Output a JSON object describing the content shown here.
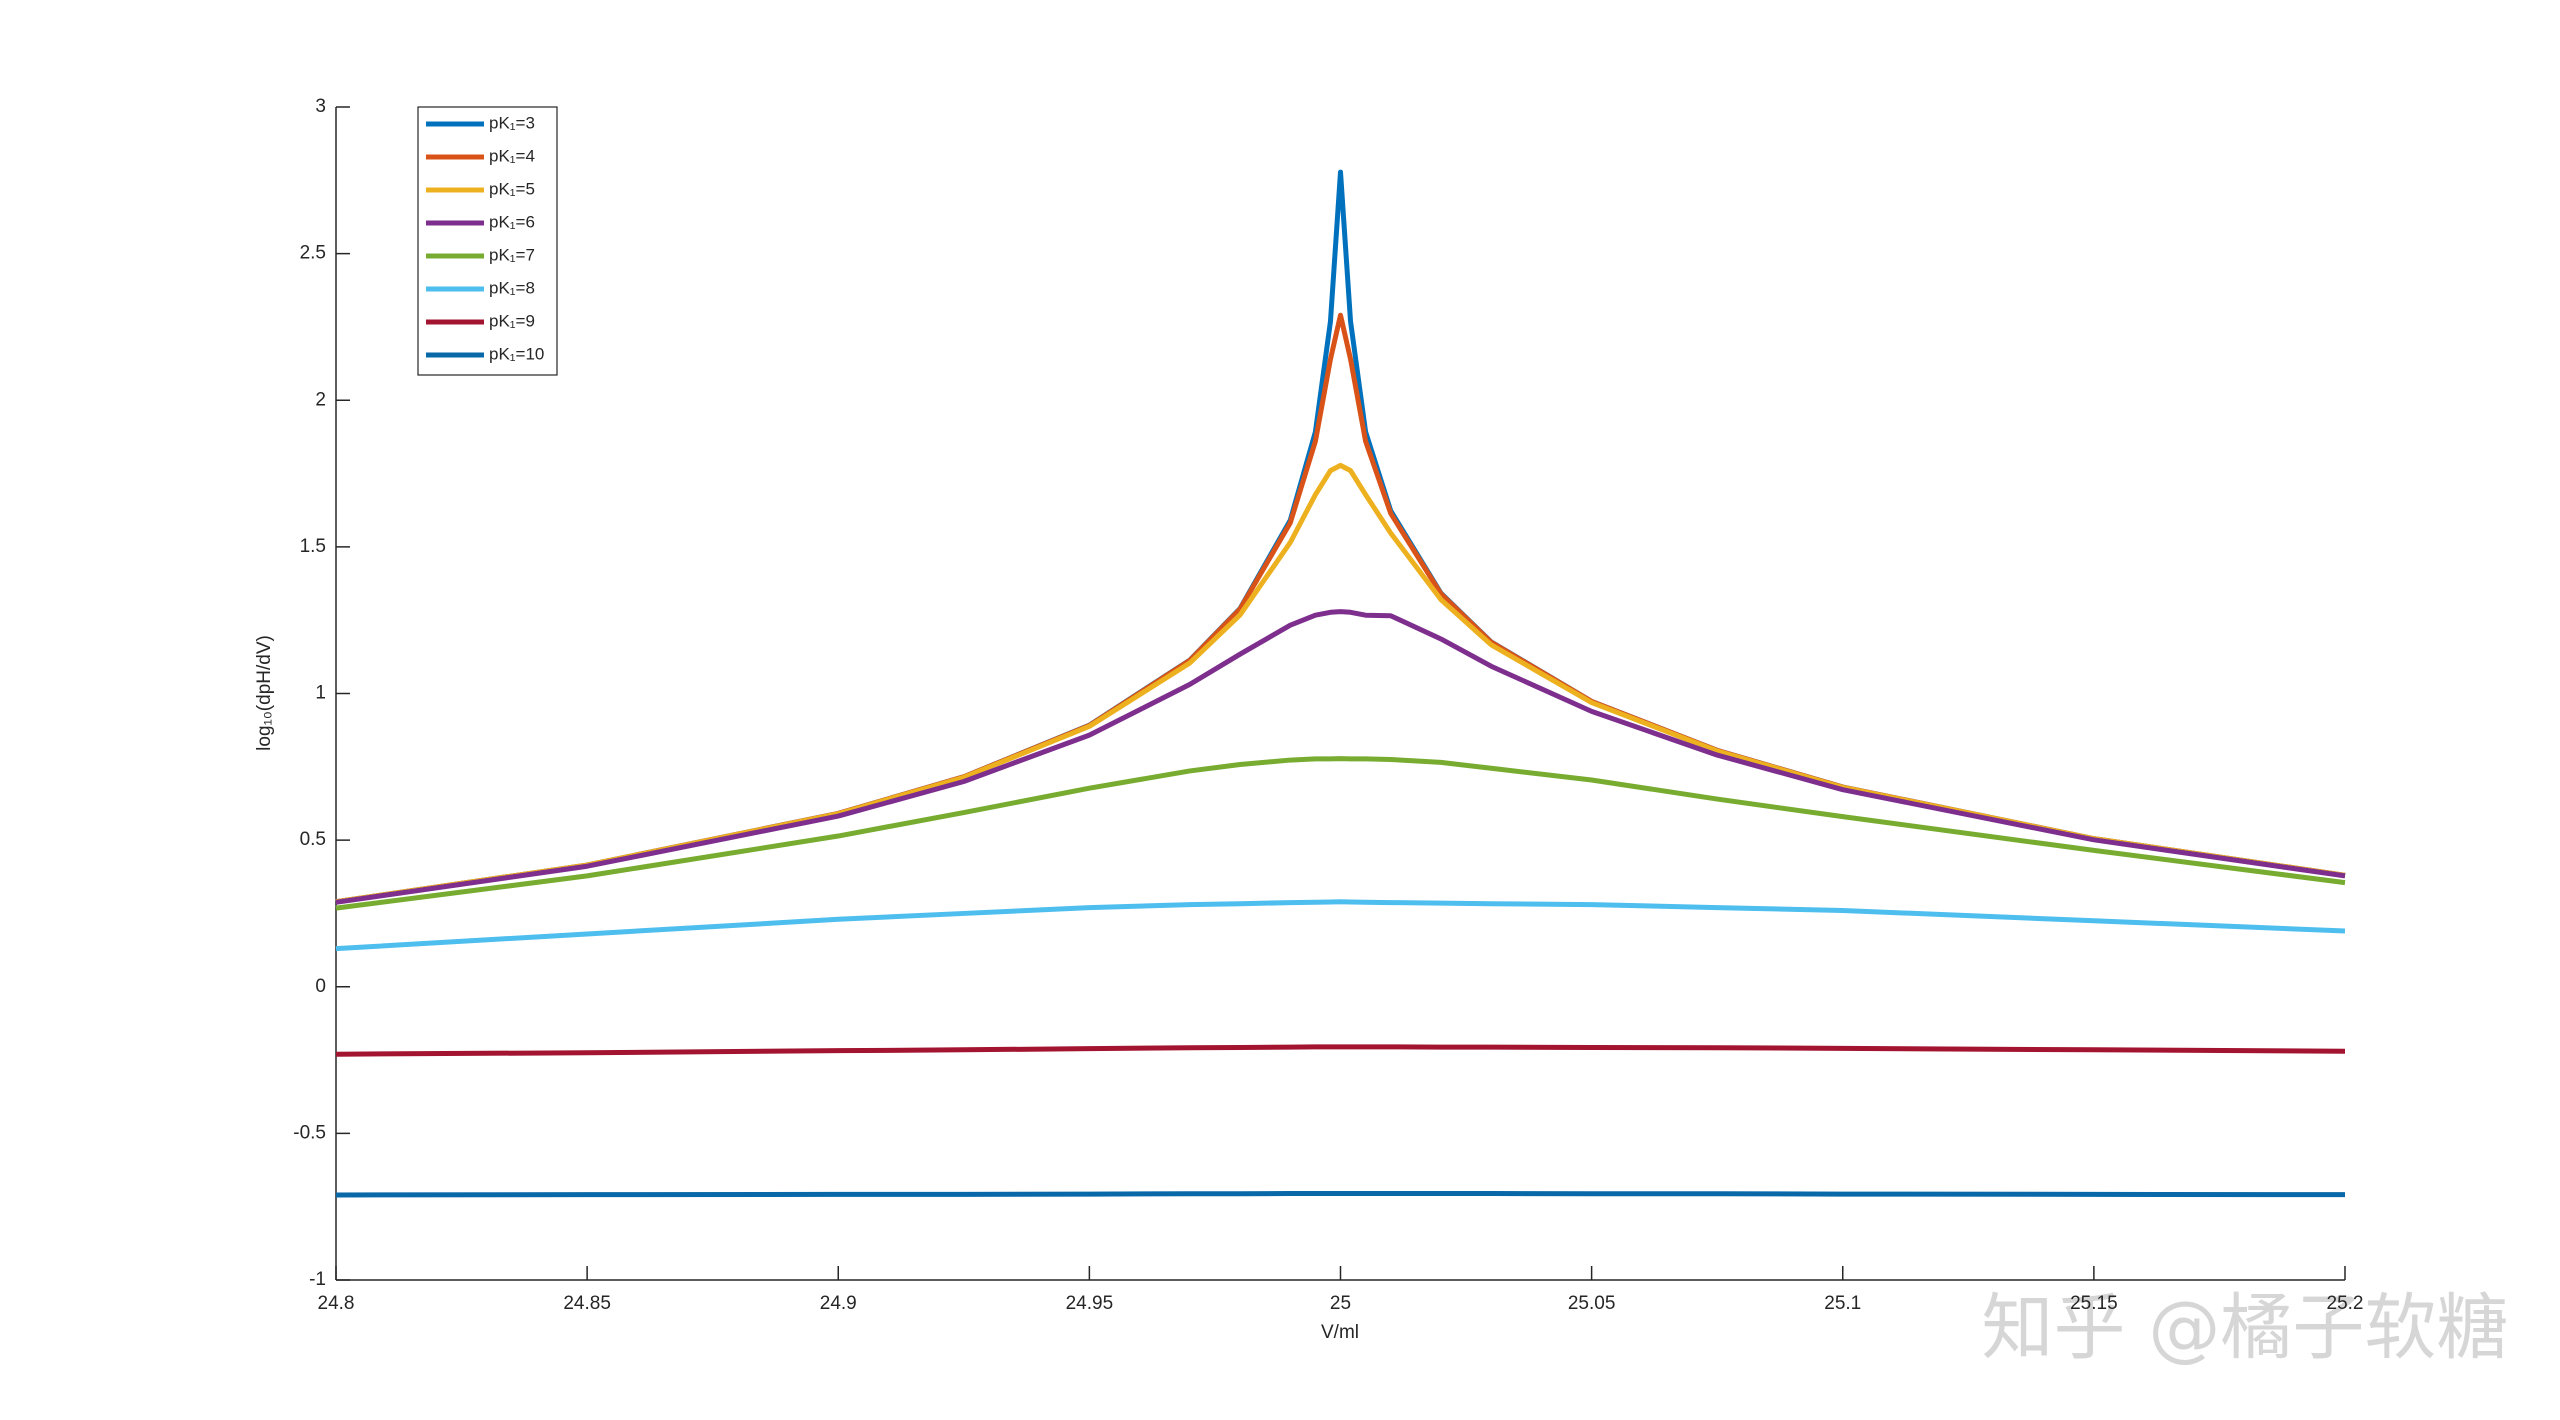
{
  "chart_data": {
    "type": "line",
    "xlabel": "V/ml",
    "ylabel": "log₁₀(dpH/dV)",
    "watermark": "知乎 @橘子软糖",
    "x": [
      24.8,
      24.85,
      24.9,
      24.925,
      24.95,
      24.97,
      24.98,
      24.99,
      24.995,
      24.998,
      25,
      25.002,
      25.005,
      25.01,
      25.02,
      25.03,
      25.05,
      25.075,
      25.1,
      25.15,
      25.2
    ],
    "xlim": [
      24.8,
      25.2
    ],
    "xticks": [
      24.8,
      24.85,
      24.9,
      24.95,
      25,
      25.05,
      25.1,
      25.15,
      25.2
    ],
    "ylim": [
      -1,
      3
    ],
    "yticks": [
      -1,
      -0.5,
      0,
      0.5,
      1,
      1.5,
      2,
      2.5,
      3
    ],
    "legend": "upper left",
    "grid": false,
    "series": [
      {
        "name": "pK₁=3",
        "color": "#0072BD",
        "values": [
          0.29,
          0.415,
          0.591,
          0.716,
          0.892,
          1.114,
          1.29,
          1.591,
          1.892,
          2.269,
          2.778,
          2.269,
          1.892,
          1.623,
          1.342,
          1.176,
          0.973,
          0.806,
          0.681,
          0.505,
          0.38
        ]
      },
      {
        "name": "pK₁=4",
        "color": "#D95319",
        "values": [
          0.29,
          0.415,
          0.591,
          0.716,
          0.891,
          1.113,
          1.288,
          1.582,
          1.86,
          2.14,
          2.29,
          2.14,
          1.86,
          1.614,
          1.34,
          1.175,
          0.973,
          0.806,
          0.681,
          0.505,
          0.38
        ]
      },
      {
        "name": "pK₁=5",
        "color": "#EDB120",
        "values": [
          0.29,
          0.415,
          0.59,
          0.714,
          0.888,
          1.104,
          1.268,
          1.515,
          1.678,
          1.76,
          1.778,
          1.76,
          1.678,
          1.547,
          1.32,
          1.166,
          0.969,
          0.804,
          0.68,
          0.505,
          0.38
        ]
      },
      {
        "name": "pK₁=6",
        "color": "#7E2F8E",
        "values": [
          0.288,
          0.411,
          0.582,
          0.7,
          0.858,
          1.031,
          1.134,
          1.233,
          1.267,
          1.277,
          1.279,
          1.277,
          1.267,
          1.265,
          1.186,
          1.093,
          0.939,
          0.79,
          0.672,
          0.501,
          0.378
        ]
      },
      {
        "name": "pK₁=7",
        "color": "#77AC30",
        "values": [
          0.268,
          0.378,
          0.514,
          0.594,
          0.677,
          0.736,
          0.758,
          0.773,
          0.777,
          0.777,
          0.778,
          0.777,
          0.777,
          0.775,
          0.765,
          0.745,
          0.705,
          0.64,
          0.58,
          0.465,
          0.355
        ]
      },
      {
        "name": "pK₁=8",
        "color": "#4DBEEE",
        "values": [
          0.13,
          0.18,
          0.23,
          0.25,
          0.27,
          0.28,
          0.283,
          0.287,
          0.288,
          0.289,
          0.29,
          0.289,
          0.288,
          0.287,
          0.285,
          0.283,
          0.28,
          0.27,
          0.26,
          0.225,
          0.19
        ]
      },
      {
        "name": "pK₁=9",
        "color": "#A2142F",
        "values": [
          -0.23,
          -0.225,
          -0.218,
          -0.215,
          -0.211,
          -0.208,
          -0.207,
          -0.206,
          -0.205,
          -0.205,
          -0.205,
          -0.205,
          -0.205,
          -0.205,
          -0.206,
          -0.206,
          -0.207,
          -0.208,
          -0.21,
          -0.215,
          -0.22
        ]
      },
      {
        "name": "pK₁=10",
        "color": "#0868A8",
        "values": [
          -0.71,
          -0.709,
          -0.708,
          -0.708,
          -0.707,
          -0.706,
          -0.706,
          -0.705,
          -0.705,
          -0.705,
          -0.705,
          -0.705,
          -0.705,
          -0.705,
          -0.705,
          -0.705,
          -0.706,
          -0.706,
          -0.707,
          -0.708,
          -0.709
        ]
      }
    ]
  }
}
